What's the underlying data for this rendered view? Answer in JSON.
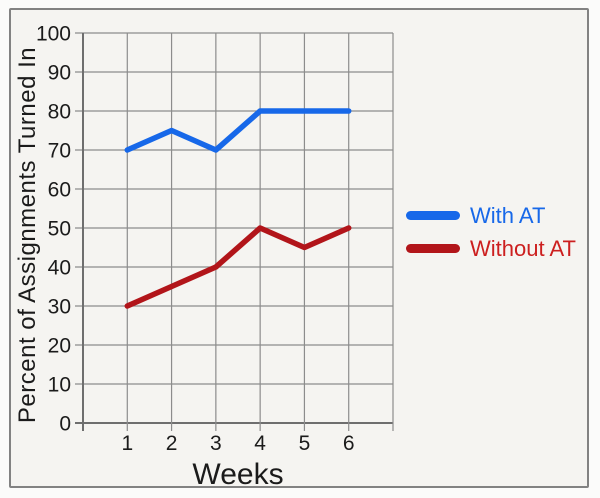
{
  "figure": {
    "outer_background": "#fbfbfa",
    "frame_background": "#f5f4f1",
    "frame_border_color": "#828282",
    "grid_color": "#8c8c8c",
    "axis_color": "#6e6e6e",
    "text_color": "#1b1b1b"
  },
  "chart_data": {
    "type": "line",
    "title": "",
    "xlabel": "Weeks",
    "ylabel": "Percent of Assignments Turned In",
    "categories": [
      "1",
      "2",
      "3",
      "4",
      "5",
      "6"
    ],
    "y_ticks": [
      "0",
      "10",
      "20",
      "30",
      "40",
      "50",
      "60",
      "70",
      "80",
      "90",
      "100"
    ],
    "ylim": [
      0,
      100
    ],
    "x_slots": 7,
    "grid": true,
    "legend_position": "right",
    "series": [
      {
        "name": "With AT",
        "color": "#1768e9",
        "label_color": "#1768e9",
        "values": [
          70,
          75,
          70,
          80,
          80,
          80
        ]
      },
      {
        "name": "Without AT",
        "color": "#b2151a",
        "label_color": "#cc1f1f",
        "values": [
          30,
          35,
          40,
          50,
          45,
          50
        ]
      }
    ]
  }
}
